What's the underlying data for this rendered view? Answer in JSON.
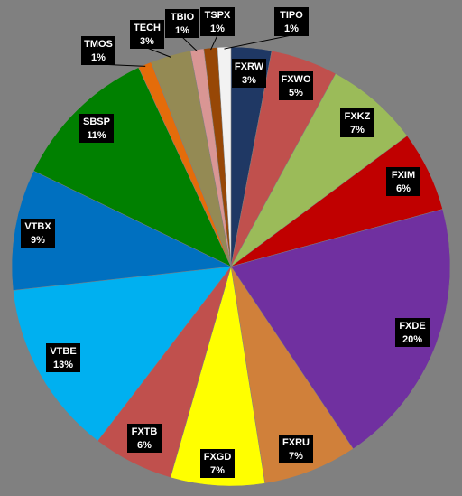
{
  "chart_data": {
    "type": "pie",
    "categories": [
      "FXRW",
      "FXWO",
      "FXKZ",
      "FXIM",
      "FXDE",
      "FXRU",
      "FXGD",
      "FXTB",
      "VTBE",
      "VTBX",
      "SBSP",
      "TMOS",
      "TECH",
      "TBIO",
      "TSPX",
      "TIPO"
    ],
    "values": [
      3,
      5,
      7,
      6,
      20,
      7,
      7,
      6,
      13,
      9,
      11,
      1,
      3,
      1,
      1,
      1
    ],
    "value_labels": [
      "3%",
      "5%",
      "7%",
      "6%",
      "20%",
      "7%",
      "7%",
      "6%",
      "13%",
      "9%",
      "11%",
      "1%",
      "3%",
      "1%",
      "1%",
      "1%"
    ],
    "colors": [
      "#1f3864",
      "#c0504d",
      "#9bbb59",
      "#c00000",
      "#7030a0",
      "#d0803a",
      "#ffff00",
      "#c0504d",
      "#00b0f0",
      "#0070c0",
      "#008000",
      "#e46c0a",
      "#948a54",
      "#d99694",
      "#974706",
      "#f2f2f2"
    ]
  }
}
